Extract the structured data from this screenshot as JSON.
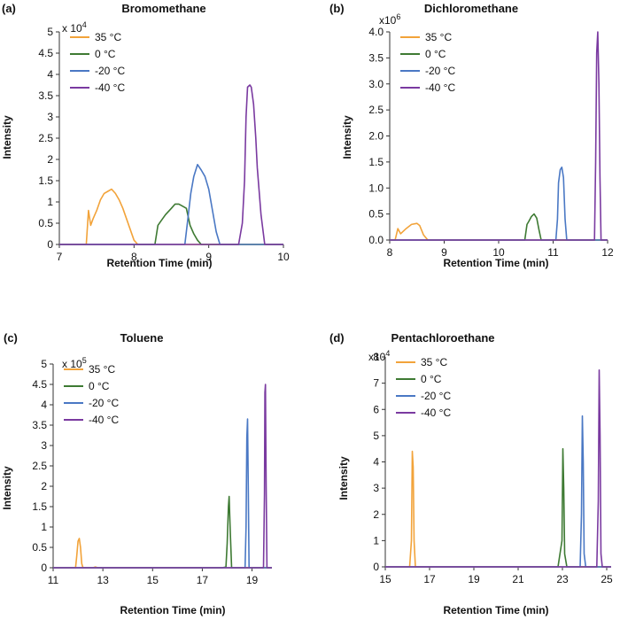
{
  "colors": {
    "35 °C": "#f2a33a",
    "0 °C": "#3e7a33",
    "-20 °C": "#4a78c4",
    "-40 °C": "#7a3aa0"
  },
  "chart_data": [
    {
      "panel": "(a)",
      "type": "line",
      "title": "Bromomethane",
      "xlabel": "Retention Time (min)",
      "ylabel": "Intensity",
      "y_multiplier": {
        "base": "x 10",
        "exp": "4"
      },
      "xlim": [
        7,
        10
      ],
      "ylim": [
        0,
        5
      ],
      "xticks": [
        "7",
        "8",
        "9",
        "10"
      ],
      "yticks": [
        "0",
        "0.5",
        "1",
        "1.5",
        "2",
        "2.5",
        "3",
        "3.5",
        "4",
        "4.5",
        "5"
      ],
      "legend_position": "top-left",
      "grid": false,
      "series": [
        {
          "name": "35 °C",
          "x": [
            7.0,
            7.36,
            7.39,
            7.42,
            7.45,
            7.5,
            7.55,
            7.6,
            7.65,
            7.7,
            7.75,
            7.8,
            7.85,
            7.9,
            7.95,
            8.0,
            8.05,
            10.0
          ],
          "y": [
            0,
            0,
            0.8,
            0.45,
            0.6,
            0.8,
            1.05,
            1.2,
            1.25,
            1.3,
            1.2,
            1.05,
            0.85,
            0.6,
            0.35,
            0.1,
            0,
            0
          ]
        },
        {
          "name": "0 °C",
          "x": [
            7.0,
            8.28,
            8.32,
            8.36,
            8.42,
            8.5,
            8.55,
            8.6,
            8.65,
            8.7,
            8.75,
            8.8,
            8.85,
            8.9,
            10.0
          ],
          "y": [
            0,
            0,
            0.45,
            0.55,
            0.7,
            0.85,
            0.95,
            0.95,
            0.9,
            0.85,
            0.45,
            0.25,
            0.1,
            0,
            0
          ]
        },
        {
          "name": "-20 °C",
          "x": [
            7.0,
            8.68,
            8.72,
            8.76,
            8.8,
            8.85,
            8.9,
            8.95,
            9.0,
            9.05,
            9.1,
            9.15,
            10.0
          ],
          "y": [
            0,
            0,
            0.6,
            1.2,
            1.6,
            1.88,
            1.75,
            1.6,
            1.3,
            0.8,
            0.3,
            0,
            0
          ]
        },
        {
          "name": "-40 °C",
          "x": [
            7.0,
            9.4,
            9.45,
            9.48,
            9.5,
            9.52,
            9.55,
            9.57,
            9.6,
            9.63,
            9.65,
            9.7,
            9.75,
            10.0
          ],
          "y": [
            0,
            0,
            0.5,
            1.5,
            3.0,
            3.7,
            3.75,
            3.7,
            3.3,
            2.5,
            1.8,
            0.7,
            0,
            0
          ]
        }
      ]
    },
    {
      "panel": "(b)",
      "type": "line",
      "title": "Dichloromethane",
      "xlabel": "Retention Time (min)",
      "ylabel": "Intensity",
      "y_multiplier": {
        "base": "x10",
        "exp": "6"
      },
      "xlim": [
        8,
        12
      ],
      "ylim": [
        0,
        4.0
      ],
      "xticks": [
        "8",
        "9",
        "10",
        "11",
        "12"
      ],
      "yticks": [
        "0.0",
        "0.5",
        "1.0",
        "1.5",
        "2.0",
        "2.5",
        "3.0",
        "3.5",
        "4.0"
      ],
      "legend_position": "top-left",
      "grid": false,
      "series": [
        {
          "name": "35 °C",
          "x": [
            8.0,
            8.1,
            8.15,
            8.2,
            8.3,
            8.4,
            8.5,
            8.55,
            8.62,
            8.7,
            12.0
          ],
          "y": [
            0,
            0,
            0.22,
            0.12,
            0.22,
            0.3,
            0.32,
            0.28,
            0.1,
            0,
            0
          ]
        },
        {
          "name": "0 °C",
          "x": [
            8.0,
            10.48,
            10.52,
            10.55,
            10.6,
            10.65,
            10.7,
            10.74,
            10.78,
            12.0
          ],
          "y": [
            0,
            0,
            0.3,
            0.35,
            0.45,
            0.5,
            0.42,
            0.2,
            0,
            0
          ]
        },
        {
          "name": "-20 °C",
          "x": [
            8.0,
            11.05,
            11.08,
            11.1,
            11.13,
            11.16,
            11.19,
            11.22,
            11.25,
            12.0
          ],
          "y": [
            0,
            0,
            0.4,
            1.1,
            1.35,
            1.4,
            1.2,
            0.4,
            0,
            0
          ]
        },
        {
          "name": "-40 °C",
          "x": [
            8.0,
            11.76,
            11.78,
            11.8,
            11.82,
            11.84,
            11.86,
            11.88,
            12.0
          ],
          "y": [
            0,
            0,
            1.5,
            3.6,
            4.0,
            3.0,
            1.2,
            0,
            0
          ]
        }
      ]
    },
    {
      "panel": "(c)",
      "type": "line",
      "title": "Toluene",
      "xlabel": "Retention Time (min)",
      "ylabel": "Intensity",
      "y_multiplier": {
        "base": "x 10",
        "exp": "5"
      },
      "xlim": [
        11,
        19.8
      ],
      "ylim": [
        0,
        5
      ],
      "xticks": [
        "11",
        "13",
        "15",
        "17",
        "19"
      ],
      "yticks": [
        "0",
        "0.5",
        "1",
        "1.5",
        "2",
        "2.5",
        "3",
        "3.5",
        "4",
        "4.5",
        "5"
      ],
      "legend_position": "top-left",
      "grid": false,
      "series": [
        {
          "name": "35 °C",
          "x": [
            11.0,
            11.9,
            11.95,
            12.0,
            12.05,
            12.1,
            12.15,
            12.2,
            12.6,
            12.7,
            12.8,
            19.8
          ],
          "y": [
            0,
            0,
            0.3,
            0.65,
            0.72,
            0.5,
            0.1,
            0,
            0,
            0.02,
            0,
            0
          ]
        },
        {
          "name": "0 °C",
          "x": [
            11.0,
            17.8,
            17.95,
            18.0,
            18.05,
            18.08,
            18.12,
            18.18,
            19.8
          ],
          "y": [
            0,
            0,
            0.02,
            0.6,
            1.5,
            1.75,
            1.0,
            0,
            0
          ]
        },
        {
          "name": "-20 °C",
          "x": [
            11.0,
            18.72,
            18.76,
            18.79,
            18.82,
            18.85,
            18.88,
            19.8
          ],
          "y": [
            0,
            0,
            1.0,
            3.2,
            3.65,
            2.0,
            0,
            0
          ]
        },
        {
          "name": "-40 °C",
          "x": [
            11.0,
            19.46,
            19.5,
            19.52,
            19.54,
            19.57,
            19.6,
            19.8
          ],
          "y": [
            0,
            0,
            1.8,
            4.3,
            4.5,
            2.0,
            0,
            0
          ]
        }
      ]
    },
    {
      "panel": "(d)",
      "type": "line",
      "title": "Pentachloroethane",
      "xlabel": "Retention Time (min)",
      "ylabel": "Intensity",
      "y_multiplier": {
        "base": "x10",
        "exp": "4"
      },
      "xlim": [
        15,
        25.2
      ],
      "ylim": [
        0,
        8
      ],
      "xticks": [
        "15",
        "17",
        "19",
        "21",
        "23",
        "25"
      ],
      "yticks": [
        "0",
        "1",
        "2",
        "3",
        "4",
        "5",
        "6",
        "7",
        "8"
      ],
      "legend_position": "top-left",
      "grid": false,
      "series": [
        {
          "name": "35 °C",
          "x": [
            15.0,
            16.1,
            16.18,
            16.22,
            16.26,
            16.3,
            16.36,
            25.2
          ],
          "y": [
            0,
            0,
            1.0,
            4.4,
            3.8,
            1.0,
            0,
            0
          ]
        },
        {
          "name": "0 °C",
          "x": [
            15.0,
            22.8,
            22.98,
            23.02,
            23.06,
            23.1,
            23.2,
            25.2
          ],
          "y": [
            0,
            0,
            1.0,
            4.5,
            3.0,
            0.5,
            0,
            0
          ]
        },
        {
          "name": "-20 °C",
          "x": [
            15.0,
            23.8,
            23.86,
            23.9,
            23.94,
            23.98,
            24.05,
            25.2
          ],
          "y": [
            0,
            0,
            2.0,
            5.75,
            4.0,
            0.5,
            0,
            0
          ]
        },
        {
          "name": "-40 °C",
          "x": [
            15.0,
            24.55,
            24.62,
            24.66,
            24.7,
            24.74,
            24.8,
            25.2
          ],
          "y": [
            0,
            0,
            2.5,
            7.5,
            5.0,
            0.5,
            0,
            0
          ]
        }
      ]
    }
  ]
}
